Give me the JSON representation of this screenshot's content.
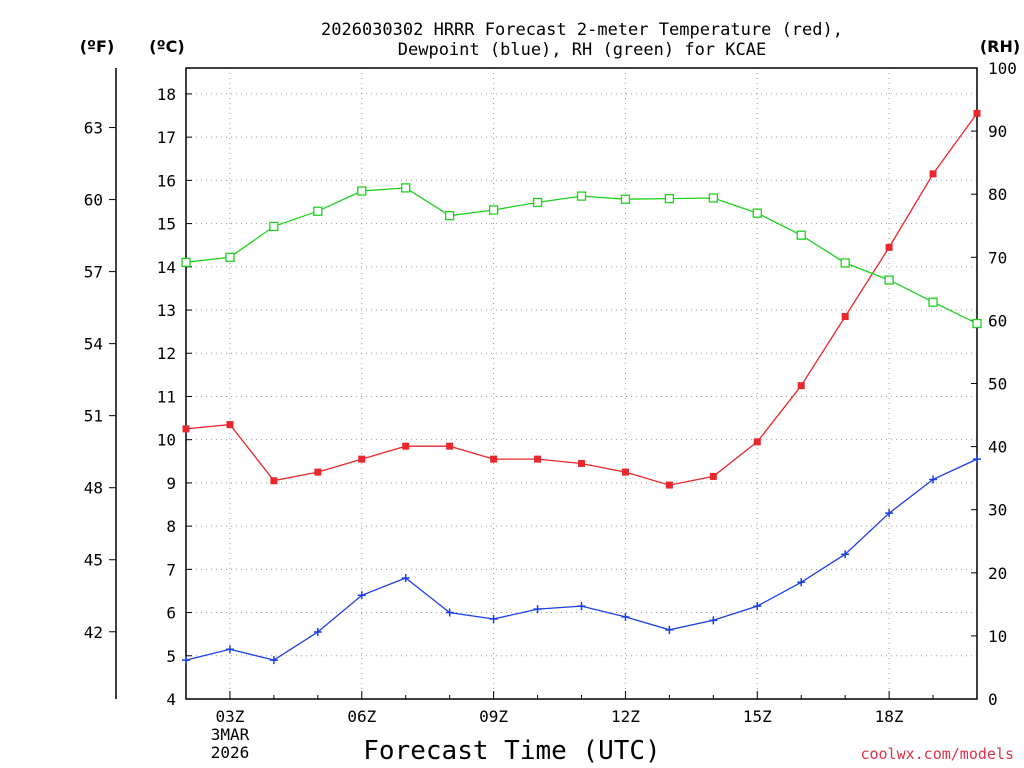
{
  "title_line1": "2026030302 HRRR Forecast 2-meter Temperature (red),",
  "title_line2": "Dewpoint (blue), RH (green) for KCAE",
  "unit_f": "(ºF)",
  "unit_c": "(ºC)",
  "unit_rh": "(RH)",
  "x_axis_title": "Forecast Time (UTC)",
  "date_label": [
    "3MAR",
    "2026"
  ],
  "credit": "coolwx.com/models",
  "colors": {
    "temperature": "#e8282d",
    "dewpoint": "#1a3fe6",
    "rh": "#1fd21f"
  },
  "chart_data": {
    "type": "line",
    "title": "2026030302 HRRR Forecast 2-meter Temperature (red), Dewpoint (blue), RH (green) for KCAE",
    "xlabel": "Forecast Time (UTC)",
    "x": [
      "02Z",
      "03Z",
      "04Z",
      "05Z",
      "06Z",
      "07Z",
      "08Z",
      "09Z",
      "10Z",
      "11Z",
      "12Z",
      "13Z",
      "14Z",
      "15Z",
      "16Z",
      "17Z",
      "18Z",
      "19Z",
      "20Z"
    ],
    "x_tick_labels": [
      "03Z",
      "06Z",
      "09Z",
      "12Z",
      "15Z",
      "18Z"
    ],
    "left_axis_f": {
      "label": "(ºF)",
      "ticks": [
        42,
        45,
        48,
        51,
        54,
        57,
        60,
        63
      ]
    },
    "left_axis_c": {
      "label": "(ºC)",
      "ylim": [
        4,
        18.6
      ],
      "ticks": [
        4,
        5,
        6,
        7,
        8,
        9,
        10,
        11,
        12,
        13,
        14,
        15,
        16,
        17,
        18
      ]
    },
    "right_axis": {
      "label": "(RH)",
      "ylim": [
        0,
        100
      ],
      "ticks": [
        0,
        10,
        20,
        30,
        40,
        50,
        60,
        70,
        80,
        90,
        100
      ]
    },
    "series": [
      {
        "name": "Temperature",
        "axis": "C",
        "color": "#e8282d",
        "marker": "filled-square",
        "values": [
          10.25,
          10.35,
          9.05,
          9.25,
          9.55,
          9.85,
          9.85,
          9.55,
          9.55,
          9.45,
          9.25,
          8.95,
          9.15,
          9.95,
          11.25,
          12.85,
          14.45,
          16.15,
          17.55
        ]
      },
      {
        "name": "Dewpoint",
        "axis": "C",
        "color": "#1a3fe6",
        "marker": "plus",
        "values": [
          4.9,
          5.15,
          4.9,
          5.55,
          6.4,
          6.8,
          6.0,
          5.85,
          6.08,
          6.15,
          5.9,
          5.6,
          5.82,
          6.15,
          6.7,
          7.35,
          8.3,
          9.08,
          9.55
        ]
      },
      {
        "name": "RH",
        "axis": "RH",
        "color": "#1fd21f",
        "marker": "open-square",
        "values": [
          69.2,
          70.0,
          74.9,
          77.3,
          80.5,
          81.0,
          76.6,
          77.5,
          78.7,
          79.7,
          79.2,
          79.3,
          79.4,
          77.0,
          73.5,
          69.1,
          66.4,
          62.9,
          59.5
        ]
      }
    ]
  }
}
